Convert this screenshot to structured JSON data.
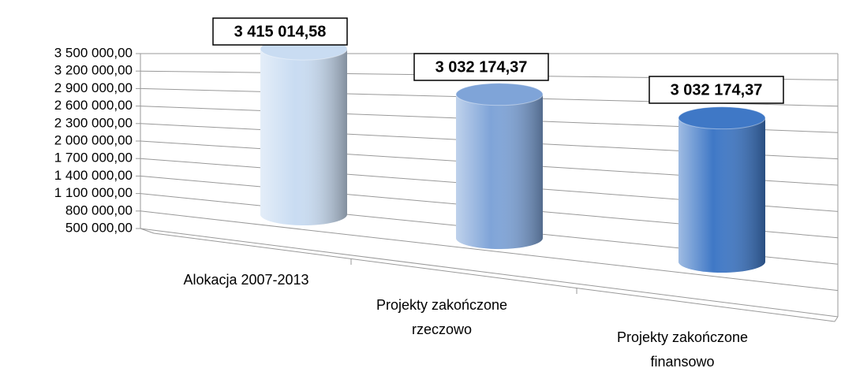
{
  "chart_data": {
    "type": "cylinder",
    "categories": [
      "Alokacja 2007-2013",
      "Projekty zakończone rzeczowo",
      "Projekty zakończone finansowo"
    ],
    "values": [
      3415014.58,
      3032174.37,
      3032174.37
    ],
    "value_labels": [
      "3 415 014,58",
      "3 032 174,37",
      "3 032 174,37"
    ],
    "colors": [
      "#c9dcf2",
      "#7fa4d8",
      "#3f78c6"
    ],
    "ylim": [
      500000,
      3500000
    ],
    "yticks": [
      {
        "value": 500000,
        "label": "500 000,00"
      },
      {
        "value": 800000,
        "label": "800 000,00"
      },
      {
        "value": 1100000,
        "label": "1 100 000,00"
      },
      {
        "value": 1400000,
        "label": "1 400 000,00"
      },
      {
        "value": 1700000,
        "label": "1 700 000,00"
      },
      {
        "value": 2000000,
        "label": "2 000 000,00"
      },
      {
        "value": 2300000,
        "label": "2 300 000,00"
      },
      {
        "value": 2600000,
        "label": "2 600 000,00"
      },
      {
        "value": 2900000,
        "label": "2 900 000,00"
      },
      {
        "value": 3200000,
        "label": "3 200 000,00"
      },
      {
        "value": 3500000,
        "label": "3 500 000,00"
      }
    ],
    "grid": true
  }
}
